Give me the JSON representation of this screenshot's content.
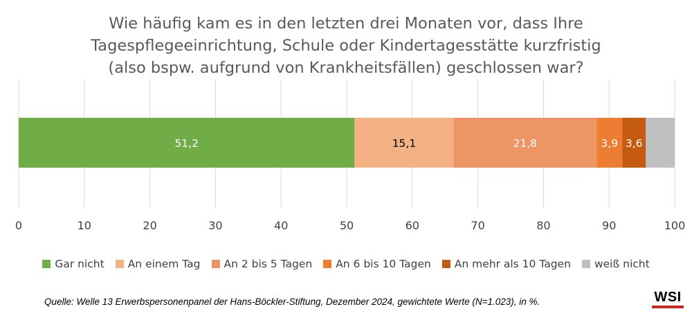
{
  "title_lines": [
    "Wie häufig kam es in den letzten drei Monaten vor, dass Ihre",
    "Tagespflegeeinrichtung, Schule oder Kindertagesstätte kurzfristig",
    "(also bspw. aufgrund von Krankheitsfällen) geschlossen war?"
  ],
  "source": "Quelle: Welle 13 Erwerbspersonenpanel der Hans-Böckler-Stiftung, Dezember 2024, gewichtete Werte (N=1.023), in %.",
  "logo": "WSI",
  "chart_data": {
    "type": "bar",
    "orientation": "horizontal",
    "stacked": true,
    "xlim": [
      0,
      100
    ],
    "xticks": [
      0,
      10,
      20,
      30,
      40,
      50,
      60,
      70,
      80,
      90,
      100
    ],
    "grid": true,
    "legend_position": "bottom",
    "series": [
      {
        "name": "Gar nicht",
        "value": 51.2,
        "label": "51,2",
        "color": "#70ad47",
        "label_color": "#ffffff"
      },
      {
        "name": "An einem Tag",
        "value": 15.1,
        "label": "15,1",
        "color": "#f4b183",
        "label_color": "#000000"
      },
      {
        "name": "An 2 bis 5 Tagen",
        "value": 21.8,
        "label": "21,8",
        "color": "#ee9566",
        "label_color": "#ffffff"
      },
      {
        "name": "An 6 bis 10 Tagen",
        "value": 3.9,
        "label": "3,9",
        "color": "#ed7d31",
        "label_color": "#ffffff"
      },
      {
        "name": "An mehr als 10 Tagen",
        "value": 3.6,
        "label": "3,6",
        "color": "#c55a11",
        "label_color": "#ffffff"
      },
      {
        "name": "weiß nicht",
        "value": 4.4,
        "label": "",
        "color": "#bfbfbf",
        "label_color": "#ffffff"
      }
    ]
  }
}
